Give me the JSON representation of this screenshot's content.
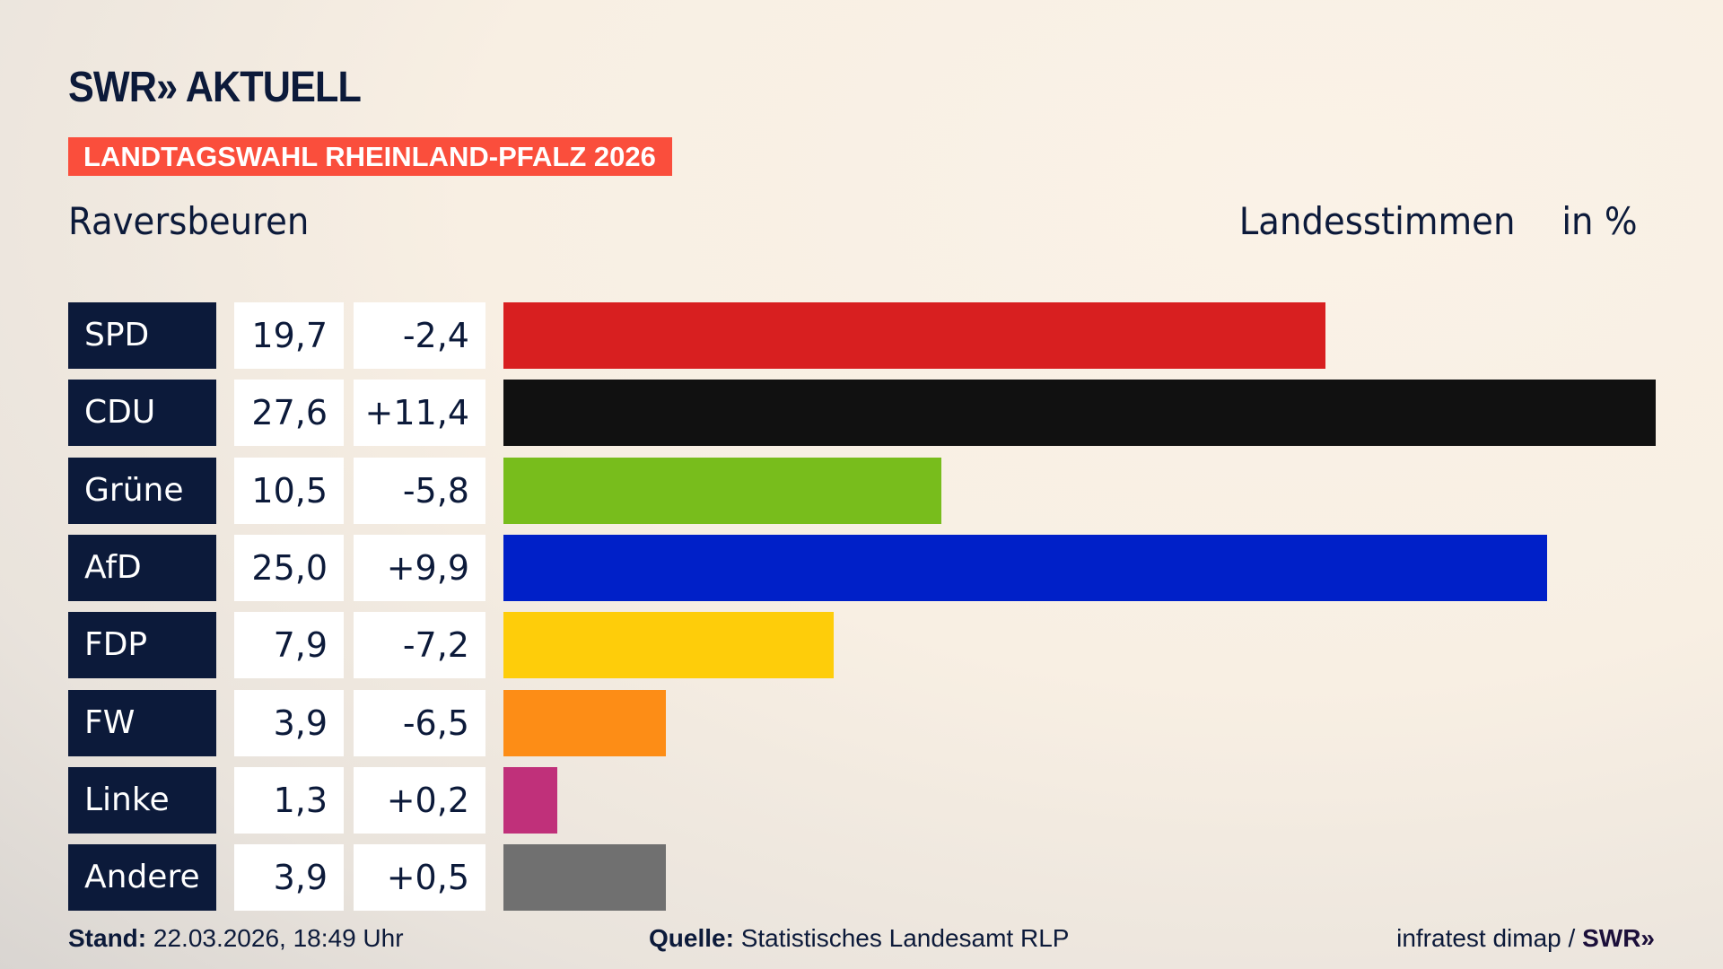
{
  "header": {
    "logo": "SWR» AKTUELL",
    "banner": "LANDTAGSWAHL RHEINLAND-PFALZ 2026",
    "place": "Raversbeuren",
    "measure": "Landesstimmen",
    "unit": "in %"
  },
  "chart_data": {
    "type": "bar",
    "orientation": "horizontal",
    "categories": [
      "SPD",
      "CDU",
      "Grüne",
      "AfD",
      "FDP",
      "FW",
      "Linke",
      "Andere"
    ],
    "values": [
      19.7,
      27.6,
      10.5,
      25.0,
      7.9,
      3.9,
      1.3,
      3.9
    ],
    "value_labels": [
      "19,7",
      "27,6",
      "10,5",
      "25,0",
      "7,9",
      "3,9",
      "1,3",
      "3,9"
    ],
    "diff_labels": [
      "-2,4",
      "+11,4",
      "-5,8",
      "+9,9",
      "-7,2",
      "-6,5",
      "+0,2",
      "+0,5"
    ],
    "diffs": [
      -2.4,
      11.4,
      -5.8,
      9.9,
      -7.2,
      -6.5,
      0.2,
      0.5
    ],
    "colors": [
      "#d81f20",
      "#111111",
      "#78bd1c",
      "#0020c8",
      "#fecd0a",
      "#fd8d16",
      "#c0307a",
      "#707070"
    ],
    "xlim": [
      0,
      27.6
    ]
  },
  "footer": {
    "stand_label": "Stand:",
    "stand": "22.03.2026, 18:49 Uhr",
    "source_label": "Quelle:",
    "source": "Statistisches Landesamt RLP",
    "credit": "infratest dimap / ",
    "credit_brand": "SWR»"
  }
}
